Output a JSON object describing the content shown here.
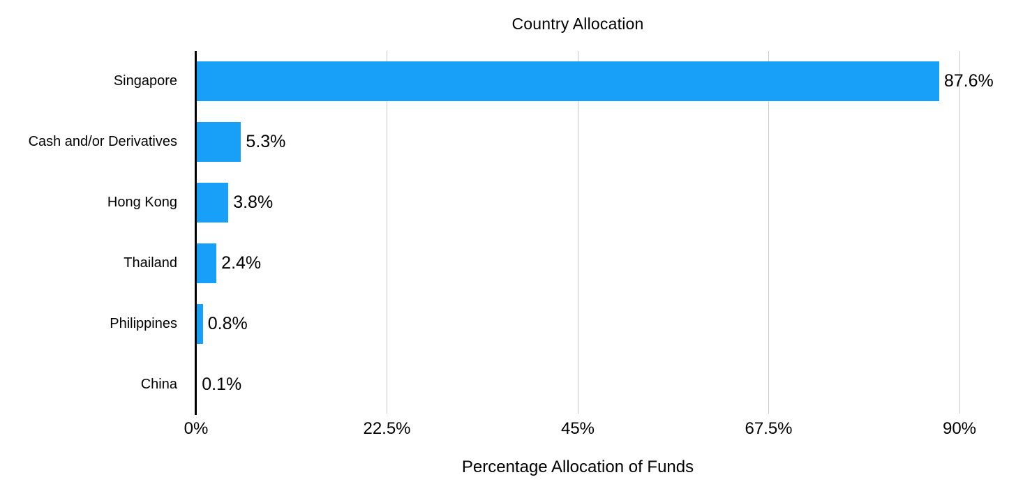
{
  "chart_data": {
    "type": "bar",
    "orientation": "horizontal",
    "title": "Country Allocation",
    "xlabel": "Percentage Allocation of Funds",
    "categories": [
      "Singapore",
      "Cash and/or Derivatives",
      "Hong Kong",
      "Thailand",
      "Philippines",
      "China"
    ],
    "values": [
      87.6,
      5.3,
      3.8,
      2.4,
      0.8,
      0.1
    ],
    "value_labels": [
      "87.6%",
      "5.3%",
      "3.8%",
      "2.4%",
      "0.8%",
      "0.1%"
    ],
    "x_ticks": [
      "0%",
      "22.5%",
      "45%",
      "67.5%",
      "90%"
    ],
    "x_tick_values": [
      0,
      22.5,
      45,
      67.5,
      90
    ],
    "xlim": [
      0,
      90
    ],
    "grid": "vertical-only",
    "legend": "none",
    "colors": {
      "bar": "#18A0F8",
      "gridline": "#C9C9C9",
      "axis_line": "#000000",
      "text": "#000000",
      "background": "#FFFFFF"
    }
  }
}
